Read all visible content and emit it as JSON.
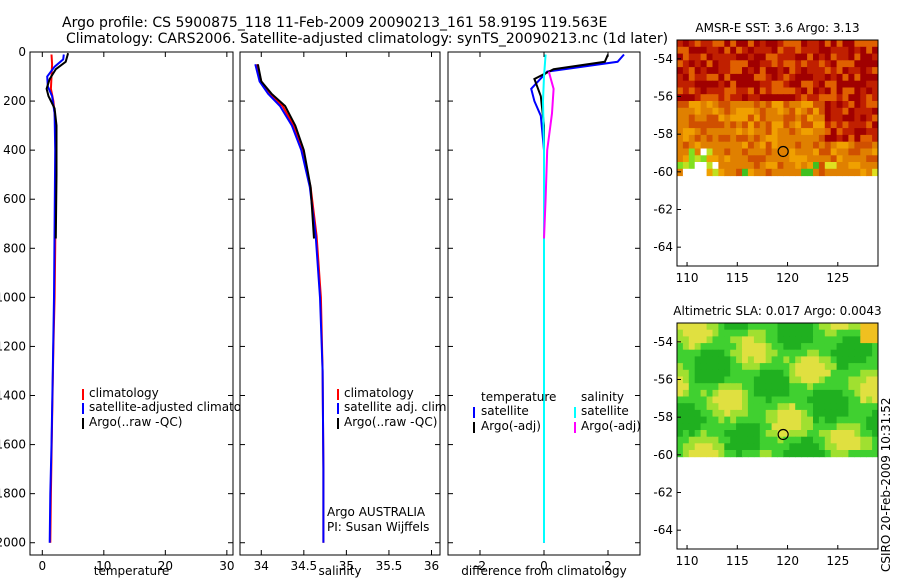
{
  "header": {
    "line1": "Argo profile: CS 5900875_118 11-Feb-2009 20090213_161 58.919S 119.563E",
    "line2": "Climatology: CARS2006. Satellite-adjusted climatology: synTS_20090213.nc (1d later)"
  },
  "side_label": "CSIRO 20-Feb-2009 10:31:52",
  "colors": {
    "climatology": "#ff0000",
    "satellite": "#0000ff",
    "argo": "#000000",
    "sat_salinity": "#00ffff",
    "argo_adj_salinity": "#ff00ff",
    "sst_hot": "#a00000",
    "sst_warm": "#e08000",
    "sla_green": "#20c020",
    "sla_yellow": "#e0e040"
  },
  "chart_data": [
    {
      "id": "temperature",
      "type": "line",
      "xlabel": "temperature",
      "ylabel": "",
      "xlim": [
        -2,
        31
      ],
      "ylim": [
        2050,
        0
      ],
      "xticks": [
        0,
        10,
        20,
        30
      ],
      "yticks": [
        0,
        200,
        400,
        600,
        800,
        1000,
        1200,
        1400,
        1600,
        1800,
        2000
      ],
      "legend": [
        "climatology",
        "satellite-adjusted climatology",
        "Argo(..raw -QC)"
      ],
      "series": [
        {
          "name": "climatology",
          "color": "#ff0000",
          "x": [
            1.5,
            1.6,
            1.5,
            1.4,
            1.8,
            2.2,
            2.2,
            2.1,
            2.0,
            1.8,
            1.6,
            1.4,
            1.3
          ],
          "y": [
            10,
            50,
            100,
            150,
            200,
            300,
            500,
            800,
            1000,
            1200,
            1500,
            1800,
            2000
          ]
        },
        {
          "name": "satellite-adjusted climatology",
          "color": "#0000ff",
          "x": [
            3.5,
            3.4,
            2.0,
            0.8,
            0.9,
            1.6,
            2.0,
            2.1,
            2.0,
            1.9,
            1.7,
            1.5,
            1.3,
            1.2
          ],
          "y": [
            10,
            30,
            60,
            100,
            140,
            180,
            250,
            400,
            700,
            1000,
            1300,
            1600,
            1800,
            2000
          ]
        },
        {
          "name": "Argo(..raw -QC)",
          "color": "#000000",
          "x": [
            4.2,
            3.8,
            2.2,
            1.2,
            0.7,
            1.0,
            2.0,
            2.3,
            2.3,
            2.2
          ],
          "y": [
            5,
            40,
            70,
            110,
            150,
            180,
            230,
            300,
            500,
            760
          ]
        }
      ]
    },
    {
      "id": "salinity",
      "type": "line",
      "xlabel": "salinity",
      "ylabel": "",
      "xlim": [
        33.75,
        36.1
      ],
      "ylim": [
        2050,
        0
      ],
      "xticks": [
        34,
        34.5,
        35,
        35.5,
        36
      ],
      "xtick_labels": [
        "34",
        "34.5",
        "35",
        "35.5",
        "36"
      ],
      "legend": [
        "climatology",
        "satellite adj. clim.",
        "Argo(..raw -QC)"
      ],
      "annotations": [
        "Argo AUSTRALIA",
        "PI: Susan Wijffels"
      ],
      "series": [
        {
          "name": "climatology",
          "color": "#ff0000",
          "x": [
            33.95,
            34.0,
            34.1,
            34.25,
            34.38,
            34.48,
            34.58,
            34.65,
            34.7,
            34.72,
            34.73,
            34.73
          ],
          "y": [
            50,
            120,
            170,
            220,
            300,
            400,
            550,
            750,
            1000,
            1300,
            1700,
            2000
          ]
        },
        {
          "name": "satellite adj. clim.",
          "color": "#0000ff",
          "x": [
            33.93,
            33.98,
            34.08,
            34.22,
            34.36,
            34.47,
            34.57,
            34.64,
            34.69,
            34.72,
            34.73,
            34.73
          ],
          "y": [
            50,
            120,
            170,
            220,
            300,
            400,
            550,
            750,
            1000,
            1300,
            1700,
            2000
          ]
        },
        {
          "name": "Argo(..raw -QC)",
          "color": "#000000",
          "x": [
            33.96,
            34.0,
            34.12,
            34.28,
            34.4,
            34.5,
            34.58,
            34.62
          ],
          "y": [
            50,
            120,
            170,
            220,
            300,
            400,
            550,
            760
          ]
        }
      ]
    },
    {
      "id": "difference",
      "type": "line",
      "xlabel": "difference from climatology",
      "ylabel": "",
      "xlim": [
        -3,
        3
      ],
      "ylim": [
        2050,
        0
      ],
      "xticks": [
        -2,
        0,
        2
      ],
      "legend_left_title": "temperature",
      "legend_right_title": "salinity",
      "legend_left": [
        "satellite",
        "Argo(-adj)"
      ],
      "legend_right": [
        "satellite",
        "Argo(-adj)"
      ],
      "series": [
        {
          "name": "temperature satellite",
          "color": "#0000ff",
          "x": [
            2.5,
            2.3,
            0.1,
            -0.4,
            -0.3,
            -0.1,
            0.0,
            0.0,
            0.0,
            0.0
          ],
          "y": [
            10,
            40,
            80,
            150,
            200,
            260,
            400,
            800,
            1400,
            2000
          ]
        },
        {
          "name": "temperature Argo(-adj)",
          "color": "#000000",
          "x": [
            2.0,
            1.9,
            0.3,
            -0.3,
            -0.1,
            0.0,
            0.0
          ],
          "y": [
            10,
            40,
            70,
            110,
            180,
            300,
            760
          ]
        },
        {
          "name": "salinity satellite",
          "color": "#00ffff",
          "x": [
            0.05,
            0.0,
            -0.03,
            0.0,
            0.0,
            0.0
          ],
          "y": [
            10,
            100,
            200,
            400,
            1000,
            2000
          ]
        },
        {
          "name": "salinity Argo(-adj)",
          "color": "#ff00ff",
          "x": [
            0.15,
            0.3,
            0.25,
            0.1,
            0.05,
            0.0
          ],
          "y": [
            80,
            150,
            250,
            400,
            600,
            760
          ]
        }
      ]
    },
    {
      "id": "sst_map",
      "type": "heatmap",
      "title": "AMSR-E SST: 3.6 Argo: 3.13",
      "xlim": [
        109,
        129
      ],
      "ylim": [
        -65,
        -53
      ],
      "xticks": [
        110,
        115,
        120,
        125
      ],
      "yticks": [
        -54,
        -56,
        -58,
        -60,
        -62,
        -64
      ],
      "data_extent_lat": [
        -60.2,
        -53
      ],
      "marker": {
        "lon": 119.563,
        "lat": -58.919
      }
    },
    {
      "id": "sla_map",
      "type": "heatmap",
      "title": "Altimetric SLA: 0.017 Argo: 0.0043",
      "xlim": [
        109,
        129
      ],
      "ylim": [
        -65,
        -53
      ],
      "xticks": [
        110,
        115,
        120,
        125
      ],
      "yticks": [
        -54,
        -56,
        -58,
        -60,
        -62,
        -64
      ],
      "data_extent_lat": [
        -60.1,
        -53
      ],
      "marker": {
        "lon": 119.563,
        "lat": -58.919
      }
    }
  ]
}
